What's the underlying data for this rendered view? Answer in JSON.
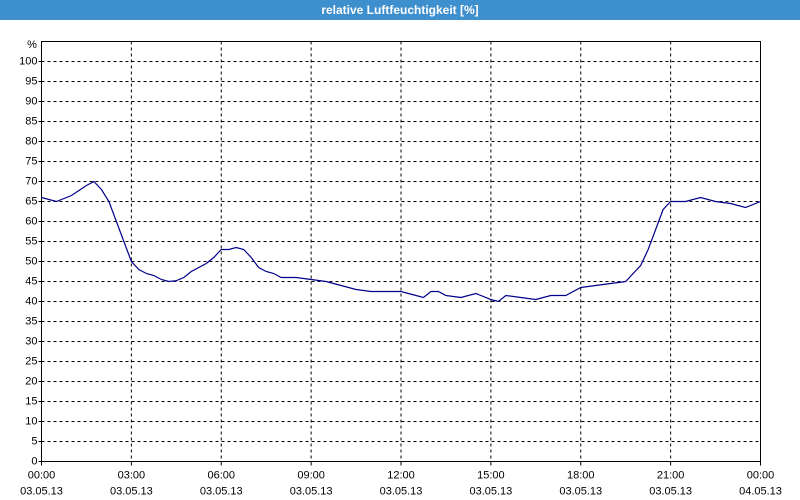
{
  "window_title": "relative Luftfeuchtigkeit [%]",
  "chart_data": {
    "type": "line",
    "ylabel": "%",
    "x": [
      0,
      0.5,
      1,
      1.5,
      1.75,
      2,
      2.25,
      2.5,
      2.75,
      3,
      3.25,
      3.5,
      3.75,
      4,
      4.25,
      4.5,
      4.75,
      5,
      5.5,
      5.75,
      6,
      6.25,
      6.5,
      6.75,
      7,
      7.25,
      7.5,
      7.75,
      8,
      8.5,
      9,
      9.5,
      10,
      10.5,
      11,
      11.5,
      12,
      12.5,
      12.75,
      13,
      13.25,
      13.5,
      14,
      14.5,
      15,
      15.25,
      15.5,
      16,
      16.5,
      17,
      17.5,
      18,
      18.5,
      19,
      19.5,
      19.75,
      20,
      20.25,
      20.5,
      20.75,
      21,
      21.5,
      22,
      22.5,
      23,
      23.5,
      24
    ],
    "series": [
      {
        "name": "relative Luftfeuchtigkeit",
        "color": "#00008b",
        "values": [
          66,
          65,
          66.5,
          69,
          70,
          68,
          65,
          60,
          55,
          50,
          48,
          47,
          46.5,
          45.5,
          45,
          45.2,
          46,
          47.5,
          49.5,
          51,
          53,
          53,
          53.5,
          53,
          51,
          48.5,
          47.5,
          47,
          46,
          46,
          45.5,
          45,
          44,
          43,
          42.5,
          42.5,
          42.5,
          41.5,
          41,
          42.5,
          42.5,
          41.5,
          41,
          42,
          40.5,
          40,
          41.5,
          41,
          40.5,
          41.5,
          41.5,
          43.5,
          44,
          44.5,
          45,
          47,
          49,
          53,
          58,
          63,
          65,
          65,
          66,
          65,
          64.5,
          63.5,
          65
        ]
      }
    ],
    "xlim": [
      0,
      24
    ],
    "xticks": [
      {
        "value": 0,
        "label": "00:00",
        "date": "03.05.13"
      },
      {
        "value": 3,
        "label": "03:00",
        "date": "03.05.13"
      },
      {
        "value": 6,
        "label": "06:00",
        "date": "03.05.13"
      },
      {
        "value": 9,
        "label": "09:00",
        "date": "03.05.13"
      },
      {
        "value": 12,
        "label": "12:00",
        "date": "03.05.13"
      },
      {
        "value": 15,
        "label": "15:00",
        "date": "03.05.13"
      },
      {
        "value": 18,
        "label": "18:00",
        "date": "03.05.13"
      },
      {
        "value": 21,
        "label": "21:00",
        "date": "03.05.13"
      },
      {
        "value": 24,
        "label": "00:00",
        "date": "04.05.13"
      }
    ],
    "ylim": [
      0,
      105
    ],
    "yticks": [
      0,
      5,
      10,
      15,
      20,
      25,
      30,
      35,
      40,
      45,
      50,
      55,
      60,
      65,
      70,
      75,
      80,
      85,
      90,
      95,
      100
    ],
    "grid": true
  }
}
